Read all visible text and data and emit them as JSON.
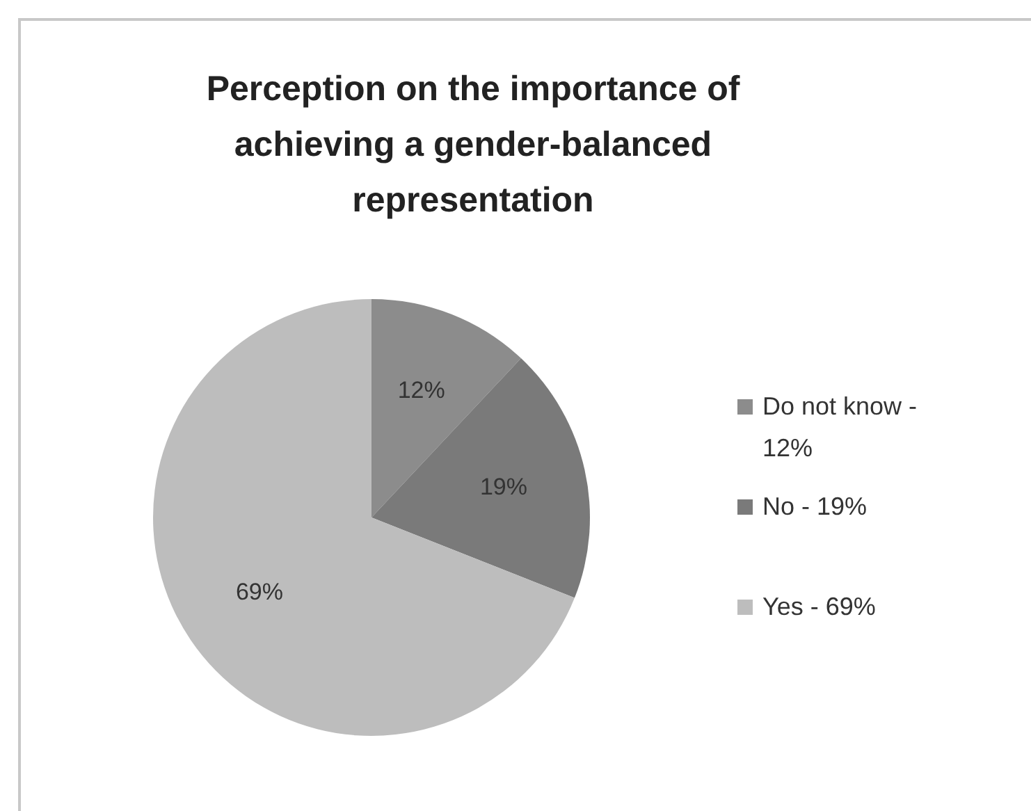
{
  "chart_data": {
    "type": "pie",
    "title": "Perception on the importance of achieving a gender-balanced representation",
    "categories": [
      "Do not know - 12%",
      "No - 19%",
      "Yes - 69%"
    ],
    "values": [
      12,
      19,
      69
    ],
    "colors": [
      "#8c8c8c",
      "#7a7a7a",
      "#bdbdbd"
    ],
    "value_labels": [
      "12%",
      "19%",
      "69%"
    ],
    "legend": "right"
  }
}
